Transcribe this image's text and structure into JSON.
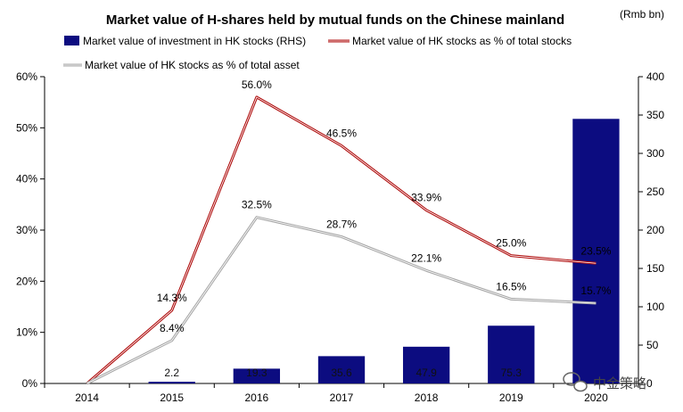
{
  "chart_data": {
    "type": "bar+line",
    "title": "Market value of H-shares held by mutual funds on the Chinese mainland",
    "unit_label": "(Rmb bn)",
    "categories": [
      "2014",
      "2015",
      "2016",
      "2017",
      "2018",
      "2019",
      "2020"
    ],
    "y_left": {
      "ticks": [
        "0%",
        "10%",
        "20%",
        "30%",
        "40%",
        "50%",
        "60%"
      ],
      "range": [
        0,
        60
      ]
    },
    "y_right": {
      "ticks": [
        "0",
        "50",
        "100",
        "150",
        "200",
        "250",
        "300",
        "350",
        "400"
      ],
      "range": [
        0,
        400
      ]
    },
    "legend_placement": "top",
    "grid": false,
    "series": [
      {
        "name": "Market value of investment in HK stocks  (RHS)",
        "kind": "bar",
        "axis": "right",
        "color": "#0c0c80",
        "values": [
          null,
          2.2,
          19.3,
          35.6,
          47.9,
          75.3,
          345.0
        ],
        "labels": [
          "",
          "2.2",
          "19.3",
          "35.6",
          "47.9",
          "75.3",
          ""
        ]
      },
      {
        "name": "Market value of HK stocks as % of total stocks",
        "kind": "line",
        "axis": "left",
        "color": "#b01010",
        "values": [
          0.0,
          14.3,
          56.0,
          46.5,
          33.9,
          25.0,
          23.5
        ],
        "labels": [
          "",
          "14.3%",
          "56.0%",
          "46.5%",
          "33.9%",
          "25.0%",
          "23.5%"
        ]
      },
      {
        "name": "Market value of HK stocks as % of total asset",
        "kind": "line",
        "axis": "left",
        "color": "#a8a8a8",
        "values": [
          0.0,
          8.4,
          32.5,
          28.7,
          22.1,
          16.5,
          15.7
        ],
        "labels": [
          "",
          "8.4%",
          "32.5%",
          "28.7%",
          "22.1%",
          "16.5%",
          "15.7%"
        ]
      }
    ]
  },
  "watermark": {
    "text": "中金策略",
    "icon": "wechat-icon"
  }
}
